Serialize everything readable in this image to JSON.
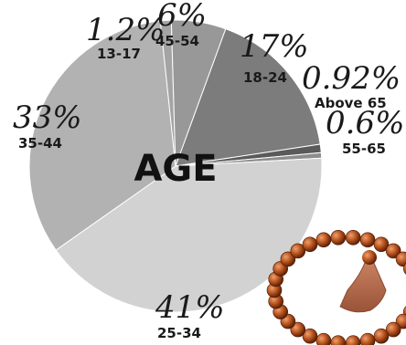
{
  "chart_data": {
    "type": "pie",
    "title": "AGE",
    "slices": [
      {
        "label": "18-24",
        "pct_text": "17%",
        "value": 17,
        "color": "#7c7c7c"
      },
      {
        "label": "Above 65",
        "pct_text": "0.92%",
        "value": 0.92,
        "color": "#5a5a5a"
      },
      {
        "label": "55-65",
        "pct_text": "0.6%",
        "value": 0.6,
        "color": "#8e8e8e"
      },
      {
        "label": "25-34",
        "pct_text": "41%",
        "value": 41,
        "color": "#d2d2d2"
      },
      {
        "label": "35-44",
        "pct_text": "33%",
        "value": 33,
        "color": "#b2b2b2"
      },
      {
        "label": "13-17",
        "pct_text": "1.2%",
        "value": 1.2,
        "color": "#a4a4a4"
      },
      {
        "label": "45-54",
        "pct_text": "6%",
        "value": 6,
        "color": "#989898"
      }
    ]
  },
  "decoration": {
    "image_icon": "prayer-beads-image"
  }
}
